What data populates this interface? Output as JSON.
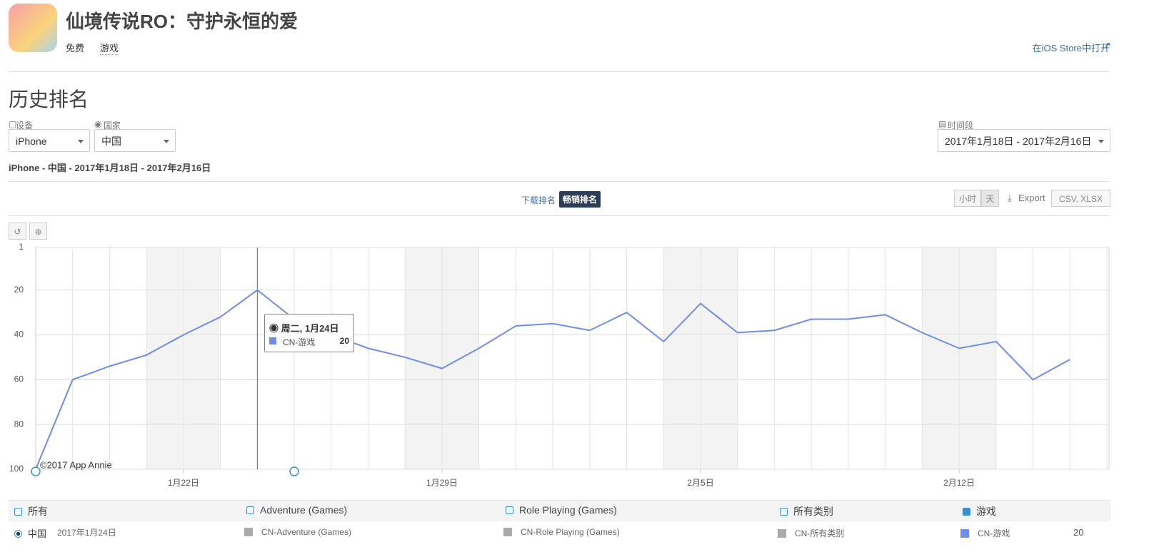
{
  "header": {
    "title": "仙境传说RO：守护永恒的爱",
    "price": "免费",
    "genre": "游戏",
    "store_link": "在iOS Store中打开"
  },
  "section_title": "历史排名",
  "filters": {
    "device_label": "设备",
    "device": "iPhone",
    "country_label": "国家",
    "country": "中国",
    "period_label": "时间段",
    "period": "2017年1月18日 - 2017年2月16日"
  },
  "summary": "iPhone - 中国 - 2017年1月18日 - 2017年2月16日",
  "tabs": [
    "下载排名",
    "畅销排名"
  ],
  "granularity": [
    "小时",
    "天"
  ],
  "export": "Export",
  "export_formats": "CSV, XLSX",
  "chart_data": {
    "type": "line",
    "y_inverted": true,
    "grid": true,
    "categories": [
      null,
      null,
      null,
      null,
      "1月22日",
      null,
      null,
      null,
      null,
      null,
      null,
      "1月29日",
      null,
      null,
      null,
      null,
      null,
      null,
      "2月5日",
      null,
      null,
      null,
      null,
      null,
      null,
      "2月12日",
      null,
      null,
      null,
      null
    ],
    "series": [
      {
        "name": "CN-游戏",
        "color": "#6f8de6",
        "values": [
          100,
          60,
          54,
          49,
          40,
          32,
          20,
          33,
          40,
          46,
          50,
          55,
          46,
          36,
          35,
          38,
          30,
          43,
          26,
          39,
          38,
          33,
          33,
          31,
          39,
          46,
          43,
          60,
          51,
          null
        ]
      }
    ],
    "ylim": [
      1,
      100
    ],
    "yticks": [
      1,
      20,
      40,
      60,
      80,
      100
    ],
    "credit": "©2017 App Annie",
    "tooltip": {
      "date": "周二, 1月24日",
      "series": "CN-游戏",
      "value": 20
    }
  },
  "legend_table": {
    "headers": [
      "所有",
      "Adventure (Games)",
      "Role Playing (Games)",
      "所有类别",
      "游戏"
    ],
    "row": [
      "中国",
      "2017年1月24日",
      "CN-Adventure (Games)",
      "CN-Role Playing (Games)",
      "CN-所有类别",
      "CN-游戏"
    ],
    "row_value": 20
  }
}
